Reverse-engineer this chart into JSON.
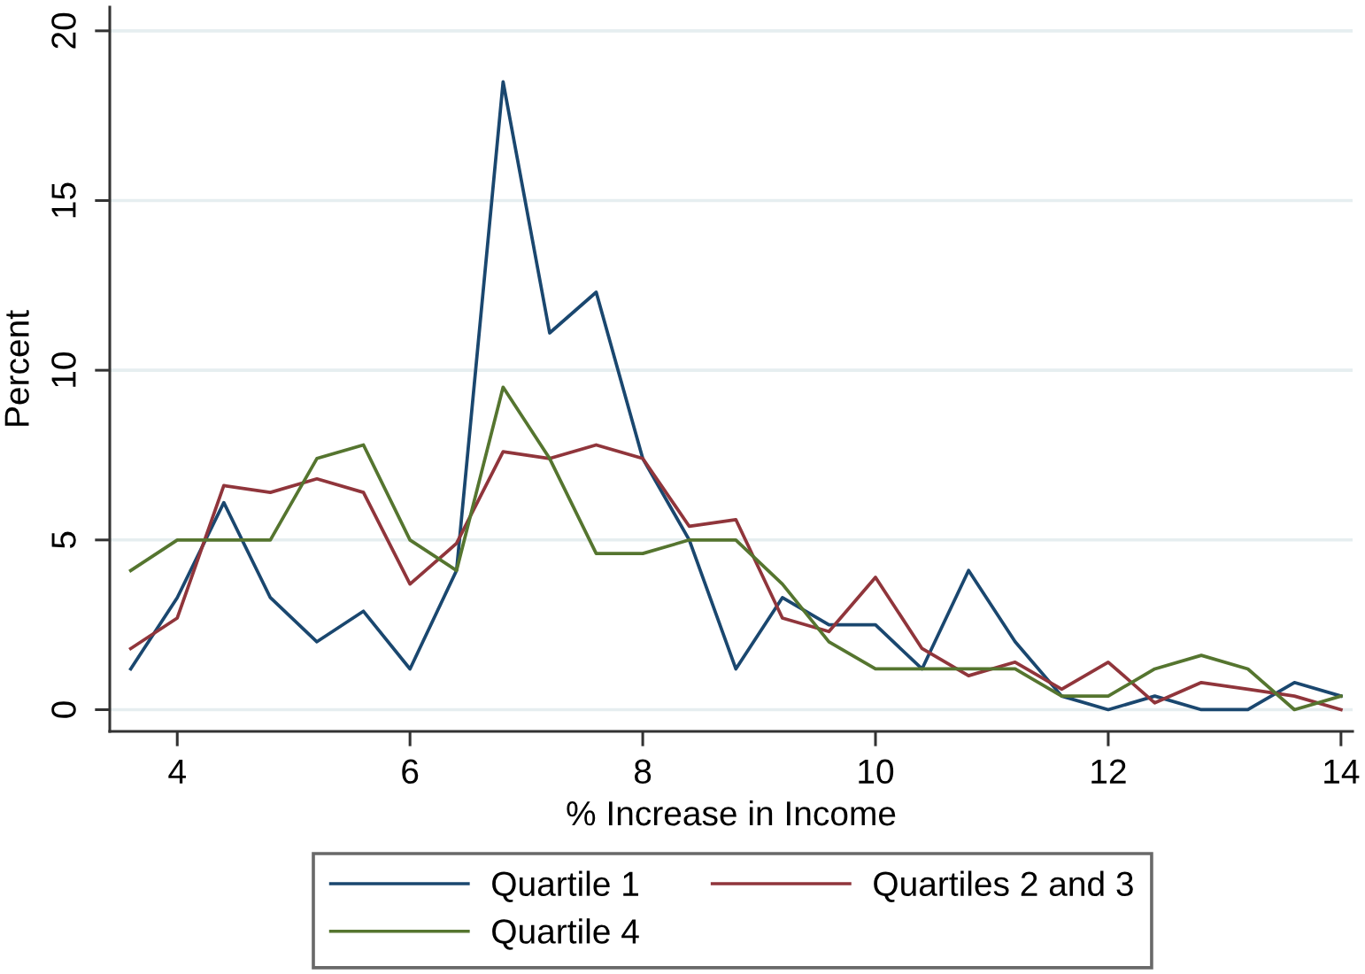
{
  "chart_data": {
    "type": "line",
    "xlabel": "% Increase in Income",
    "ylabel": "Percent",
    "x": [
      3.6,
      4.0,
      4.4,
      4.8,
      5.2,
      5.6,
      6.0,
      6.4,
      6.8,
      7.2,
      7.6,
      8.0,
      8.4,
      8.8,
      9.2,
      9.6,
      10.0,
      10.4,
      10.8,
      11.2,
      11.6,
      12.0,
      12.4,
      12.8,
      13.2,
      13.6,
      14.0
    ],
    "series": [
      {
        "name": "Quartile 1",
        "color": "#1a476f",
        "values": [
          1.2,
          3.3,
          6.1,
          3.3,
          2.0,
          2.9,
          1.2,
          4.1,
          18.5,
          11.1,
          12.3,
          7.4,
          5.0,
          1.2,
          3.3,
          2.5,
          2.5,
          1.2,
          4.1,
          2.0,
          0.4,
          0.0,
          0.4,
          0.0,
          0.0,
          0.8,
          0.4
        ]
      },
      {
        "name": "Quartiles 2 and 3",
        "color": "#90353b",
        "values": [
          1.8,
          2.7,
          6.6,
          6.4,
          6.8,
          6.4,
          3.7,
          4.9,
          7.6,
          7.4,
          7.8,
          7.4,
          5.4,
          5.6,
          2.7,
          2.3,
          3.9,
          1.8,
          1.0,
          1.4,
          0.6,
          1.4,
          0.2,
          0.8,
          0.6,
          0.4,
          0.0
        ]
      },
      {
        "name": "Quartile 4",
        "color": "#55752f",
        "values": [
          4.1,
          5.0,
          5.0,
          5.0,
          7.4,
          7.8,
          5.0,
          4.1,
          9.5,
          7.4,
          4.6,
          4.6,
          5.0,
          5.0,
          3.7,
          2.0,
          1.2,
          1.2,
          1.2,
          1.2,
          0.4,
          0.4,
          1.2,
          1.6,
          1.2,
          0.0,
          0.4
        ]
      }
    ],
    "xlim": [
      3.42,
      14.1
    ],
    "ylim": [
      -0.64,
      20.7
    ],
    "xticks": [
      4,
      6,
      8,
      10,
      12,
      14
    ],
    "yticks": [
      0,
      5,
      10,
      15,
      20
    ],
    "grid": "y",
    "legend": "bottom"
  }
}
